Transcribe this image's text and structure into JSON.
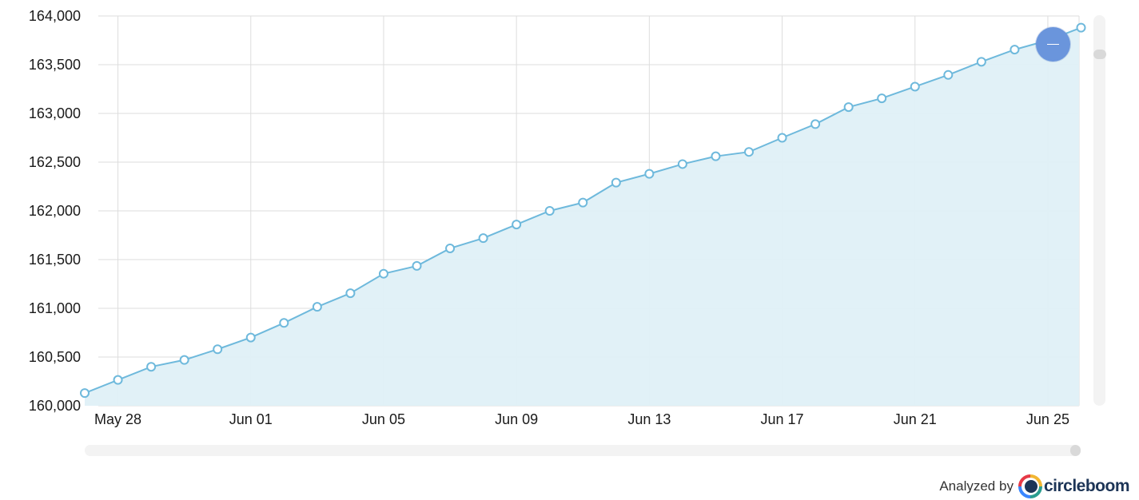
{
  "chart_data": {
    "type": "area",
    "x": [
      "May 27",
      "May 28",
      "May 29",
      "May 30",
      "May 31",
      "Jun 01",
      "Jun 02",
      "Jun 03",
      "Jun 04",
      "Jun 05",
      "Jun 06",
      "Jun 07",
      "Jun 08",
      "Jun 09",
      "Jun 10",
      "Jun 11",
      "Jun 12",
      "Jun 13",
      "Jun 14",
      "Jun 15",
      "Jun 16",
      "Jun 17",
      "Jun 18",
      "Jun 19",
      "Jun 20",
      "Jun 21",
      "Jun 22",
      "Jun 23",
      "Jun 24",
      "Jun 25",
      "Jun 26"
    ],
    "values": [
      160130,
      160265,
      160400,
      160470,
      160580,
      160700,
      160850,
      161015,
      161155,
      161355,
      161435,
      161615,
      161720,
      161860,
      162000,
      162085,
      162290,
      162380,
      162480,
      162560,
      162605,
      162750,
      162890,
      163065,
      163155,
      163275,
      163395,
      163530,
      163655,
      163750,
      163880
    ],
    "xticks": [
      "May 28",
      "Jun 01",
      "Jun 05",
      "Jun 09",
      "Jun 13",
      "Jun 17",
      "Jun 21",
      "Jun 25"
    ],
    "yticks": [
      "160,000",
      "160,500",
      "161,000",
      "161,500",
      "162,000",
      "162,500",
      "163,000",
      "163,500",
      "164,000"
    ],
    "ylim": [
      160000,
      164000
    ],
    "grid": true,
    "title": "",
    "xlabel": "",
    "ylabel": "",
    "colors": {
      "line": "#6eb9dc",
      "fill": "#dff0f7",
      "marker_fill": "#ffffff",
      "grid": "#dddddd",
      "axis": "#cccccc"
    }
  },
  "controls": {
    "zoom_button_color": "#6a95dc",
    "zoom_icon": "minus-icon"
  },
  "brand": {
    "prefix": "Analyzed by",
    "name": "circleboom",
    "icon": "circleboom-logo-icon"
  }
}
